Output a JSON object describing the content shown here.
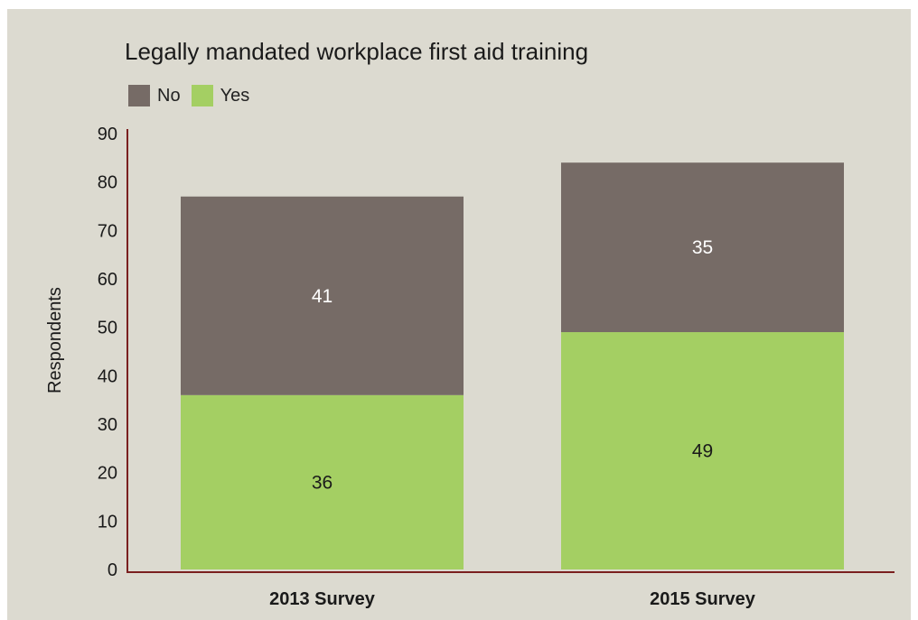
{
  "chart_data": {
    "type": "bar",
    "stacked": true,
    "title": "Legally mandated workplace first aid training",
    "xlabel": "",
    "ylabel": "Respondents",
    "ylim": [
      0,
      90
    ],
    "yticks": [
      "0",
      "10",
      "20",
      "30",
      "40",
      "50",
      "60",
      "70",
      "80",
      "90"
    ],
    "categories": [
      "2013 Survey",
      "2015 Survey"
    ],
    "series": [
      {
        "name": "Yes",
        "values": [
          36,
          49
        ],
        "color": "#a4cf63",
        "label_color": "#1a1a1a"
      },
      {
        "name": "No",
        "values": [
          41,
          35
        ],
        "color": "#766b66",
        "label_color": "#ffffff"
      }
    ],
    "legend": {
      "placement": "top-left",
      "order": [
        "No",
        "Yes"
      ]
    },
    "grid": false,
    "axis_color": "#7a1f1f",
    "background": "#dcdad0"
  }
}
